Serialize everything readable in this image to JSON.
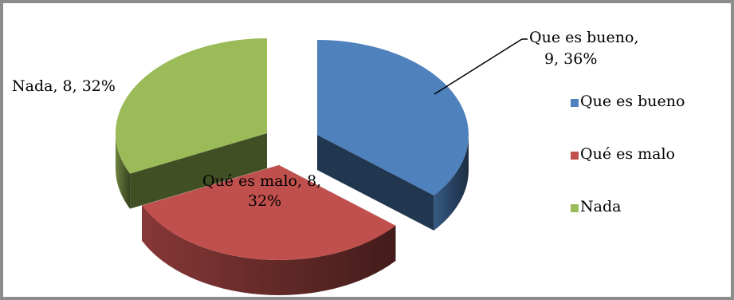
{
  "chart_data": {
    "type": "pie",
    "title": "",
    "three_d": true,
    "exploded": true,
    "legend_position": "right",
    "categories": [
      "Que es bueno",
      "Qué es malo",
      "Nada"
    ],
    "values": [
      9,
      8,
      8
    ],
    "percents": [
      36,
      32,
      32
    ],
    "colors": [
      "#4f81bd",
      "#c0504d",
      "#9bbb59"
    ],
    "data_labels": [
      {
        "line1": "Que es bueno,",
        "line2": "9, 36%"
      },
      {
        "line1": "Qué es malo, 8,",
        "line2": "32%"
      },
      {
        "line1": "Nada, 8, 32%",
        "line2": ""
      }
    ]
  }
}
